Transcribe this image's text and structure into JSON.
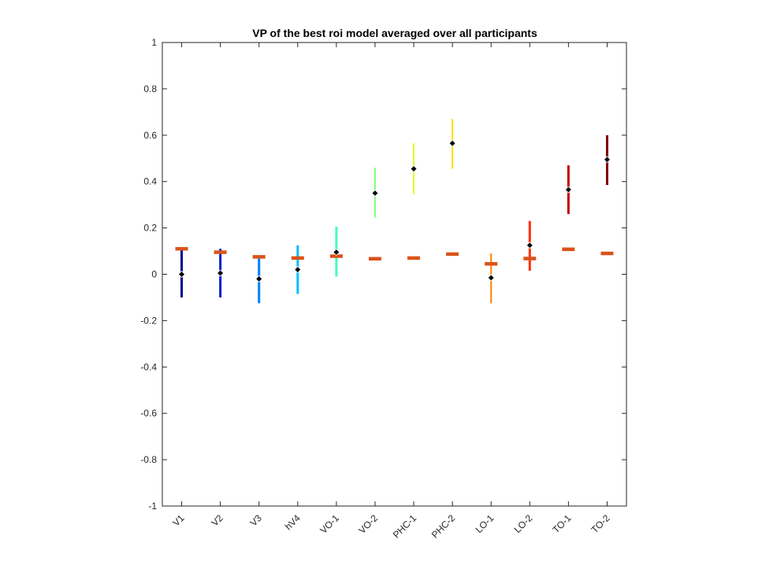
{
  "chart_data": {
    "type": "scatter",
    "title": "VP of the best roi model averaged over all participants",
    "xlabel": "",
    "ylabel": "",
    "ylim": [
      -1,
      1
    ],
    "yticks": [
      "-1",
      "-0.8",
      "-0.6",
      "-0.4",
      "-0.2",
      "0",
      "0.2",
      "0.4",
      "0.6",
      "0.8",
      "1"
    ],
    "ytick_values": [
      -1,
      -0.8,
      -0.6,
      -0.4,
      -0.2,
      0,
      0.2,
      0.4,
      0.6,
      0.8,
      1
    ],
    "categories": [
      "V1",
      "V2",
      "V3",
      "hV4",
      "VO-1",
      "VO-2",
      "PHC-1",
      "PHC-2",
      "LO-1",
      "LO-2",
      "TO-1",
      "TO-2"
    ],
    "grid": false,
    "series": [
      {
        "values": [
          0.0,
          0.005,
          -0.02,
          0.02,
          0.095,
          0.35,
          0.455,
          0.565,
          -0.015,
          0.125,
          0.365,
          0.495
        ],
        "err_low": [
          -0.1,
          -0.1,
          -0.125,
          -0.085,
          -0.01,
          0.245,
          0.345,
          0.455,
          -0.125,
          0.015,
          0.26,
          0.385
        ],
        "err_high": [
          0.11,
          0.11,
          0.08,
          0.125,
          0.205,
          0.46,
          0.565,
          0.67,
          0.09,
          0.23,
          0.47,
          0.6
        ],
        "colors": [
          "#00008f",
          "#0020cf",
          "#0080ff",
          "#00bfff",
          "#40ffbf",
          "#80ff80",
          "#dfff20",
          "#ffdf00",
          "#ff8000",
          "#ff3000",
          "#bf0000",
          "#800000"
        ],
        "marker_color": "#000000"
      },
      {
        "values": [
          0.11,
          0.095,
          0.075,
          0.07,
          0.078,
          0.067,
          0.07,
          0.087,
          0.045,
          0.068,
          0.108,
          0.09
        ],
        "color": "#d95319"
      }
    ]
  }
}
